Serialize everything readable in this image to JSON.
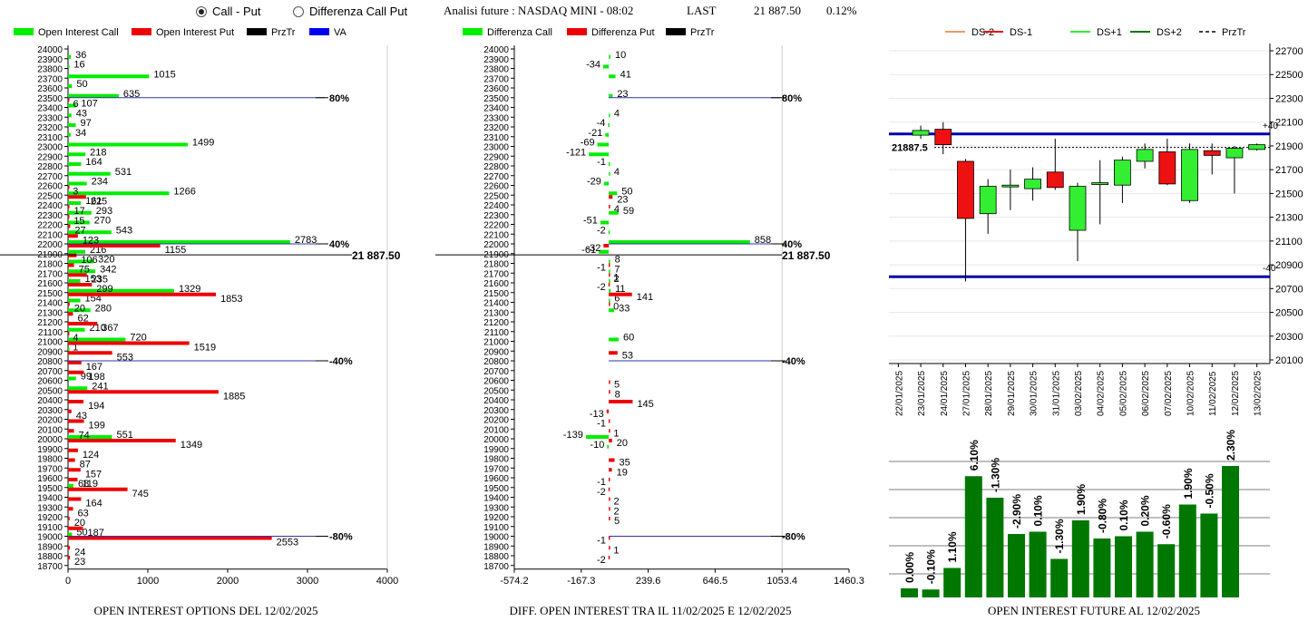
{
  "controls": {
    "radio_call_put": "Call - Put",
    "radio_diff": "Differenza Call Put",
    "selected": "call_put"
  },
  "header": {
    "title": "Analisi future : NASDAQ MINI - 08:02",
    "last_label": "LAST",
    "last_value": "21 887.50",
    "change": "0.12%"
  },
  "colors": {
    "call": "#00ee00",
    "put": "#ee0000",
    "prztr": "#000000",
    "va": "#0000ee",
    "level_line": "#3333aa",
    "up_candle": "#33ee33",
    "down_candle": "#ee1111",
    "oi_bar": "#007700"
  },
  "chart_data": [
    {
      "type": "bar",
      "orientation": "horizontal",
      "caption": "OPEN INTEREST OPTIONS DEL 12/02/2025",
      "legend": [
        "Open Interest Call",
        "Open Interest Put",
        "PrzTr",
        "VA"
      ],
      "strikes": [
        24000,
        23900,
        23800,
        23700,
        23600,
        23500,
        23400,
        23300,
        23200,
        23100,
        23000,
        22900,
        22800,
        22700,
        22600,
        22500,
        22400,
        22300,
        22200,
        22100,
        22000,
        21900,
        21800,
        21700,
        21600,
        21500,
        21400,
        21300,
        21200,
        21100,
        21000,
        20900,
        20800,
        20700,
        20600,
        20500,
        20400,
        20300,
        20200,
        20100,
        20000,
        19900,
        19800,
        19700,
        19600,
        19500,
        19400,
        19300,
        19200,
        19100,
        19000,
        18900,
        18800,
        18700
      ],
      "series": [
        {
          "name": "Open Interest Call",
          "labels": [
            {
              "strike": 23900,
              "value": 36
            },
            {
              "strike": 23800,
              "value": 16
            },
            {
              "strike": 23700,
              "value": 1015
            },
            {
              "strike": 23600,
              "value": 50
            },
            {
              "strike": 23500,
              "value": 635
            },
            {
              "strike": 23400,
              "value": 107
            },
            {
              "strike": 23300,
              "value": 43
            },
            {
              "strike": 23200,
              "value": 97
            },
            {
              "strike": 23100,
              "value": 34
            },
            {
              "strike": 23000,
              "value": 1499
            },
            {
              "strike": 22900,
              "value": 218
            },
            {
              "strike": 22800,
              "value": 164
            },
            {
              "strike": 22700,
              "value": 531
            },
            {
              "strike": 22600,
              "value": 234
            },
            {
              "strike": 22500,
              "value": 1266
            },
            {
              "strike": 22400,
              "value": 161
            },
            {
              "strike": 22300,
              "value": 293
            },
            {
              "strike": 22200,
              "value": 270
            },
            {
              "strike": 22100,
              "value": 543
            },
            {
              "strike": 22000,
              "value": 2783
            },
            {
              "strike": 21900,
              "value": 216
            },
            {
              "strike": 21800,
              "value": 320
            },
            {
              "strike": 21700,
              "value": 342
            },
            {
              "strike": 21600,
              "value": 153
            },
            {
              "strike": 21500,
              "value": 1329
            },
            {
              "strike": 21400,
              "value": 154
            },
            {
              "strike": 21300,
              "value": 280
            },
            {
              "strike": 21100,
              "value": 210
            },
            {
              "strike": 21000,
              "value": 720
            },
            {
              "strike": 20900,
              "value": 1
            },
            {
              "strike": 20600,
              "value": 99
            },
            {
              "strike": 20500,
              "value": 241
            },
            {
              "strike": 20000,
              "value": 551
            },
            {
              "strike": 19500,
              "value": 68
            },
            {
              "strike": 19000,
              "value": 50
            }
          ]
        },
        {
          "name": "Open Interest Put",
          "labels": [
            {
              "strike": 23500,
              "value": 6
            },
            {
              "strike": 22600,
              "value": 3
            },
            {
              "strike": 22500,
              "value": 225
            },
            {
              "strike": 22400,
              "value": 17
            },
            {
              "strike": 22300,
              "value": 15
            },
            {
              "strike": 22200,
              "value": 27
            },
            {
              "strike": 22100,
              "value": 123
            },
            {
              "strike": 22000,
              "value": 1155
            },
            {
              "strike": 21900,
              "value": 106
            },
            {
              "strike": 21800,
              "value": 75
            },
            {
              "strike": 21700,
              "value": 235
            },
            {
              "strike": 21600,
              "value": 299
            },
            {
              "strike": 21500,
              "value": 1853
            },
            {
              "strike": 21400,
              "value": 20
            },
            {
              "strike": 21300,
              "value": 62
            },
            {
              "strike": 21200,
              "value": 367
            },
            {
              "strike": 21100,
              "value": 4
            },
            {
              "strike": 21000,
              "value": 1519
            },
            {
              "strike": 20900,
              "value": 553
            },
            {
              "strike": 20800,
              "value": 167
            },
            {
              "strike": 20700,
              "value": 198
            },
            {
              "strike": 20500,
              "value": 1885
            },
            {
              "strike": 20400,
              "value": 194
            },
            {
              "strike": 20300,
              "value": 43
            },
            {
              "strike": 20200,
              "value": 199
            },
            {
              "strike": 20100,
              "value": 74
            },
            {
              "strike": 20000,
              "value": 1349
            },
            {
              "strike": 19900,
              "value": 124
            },
            {
              "strike": 19800,
              "value": 87
            },
            {
              "strike": 19700,
              "value": 157
            },
            {
              "strike": 19600,
              "value": 119
            },
            {
              "strike": 19500,
              "value": 745
            },
            {
              "strike": 19400,
              "value": 164
            },
            {
              "strike": 19300,
              "value": 63
            },
            {
              "strike": 19200,
              "value": 20
            },
            {
              "strike": 19100,
              "value": 187
            },
            {
              "strike": 19000,
              "value": 2553
            },
            {
              "strike": 18900,
              "value": 24
            },
            {
              "strike": 18800,
              "value": 23
            }
          ]
        }
      ],
      "levels": [
        {
          "strike": 23500,
          "label": "80%"
        },
        {
          "strike": 22000,
          "label": "40%"
        },
        {
          "strike": 20800,
          "label": "-40%"
        },
        {
          "strike": 19000,
          "label": "-80%"
        }
      ],
      "price_line": {
        "value": 21887.5,
        "label": "21 887.50"
      },
      "xticks": [
        0,
        1000,
        2000,
        3000,
        4000
      ],
      "xlim": [
        0,
        4000
      ]
    },
    {
      "type": "bar",
      "orientation": "horizontal",
      "caption": "DIFF. OPEN INTEREST TRA IL 11/02/2025 E 12/02/2025",
      "legend": [
        "Differenza Call",
        "Differenza Put",
        "PrzTr"
      ],
      "xticks": [
        "-574.2",
        "-167.3",
        "239.6",
        "646.5",
        "1053.4",
        "1460.3"
      ],
      "xlim": [
        -574.2,
        1460.3
      ],
      "series": [
        {
          "name": "Differenza Call",
          "labels": [
            {
              "strike": 23900,
              "value": 10
            },
            {
              "strike": 23800,
              "value": -34
            },
            {
              "strike": 23700,
              "value": 41
            },
            {
              "strike": 23500,
              "value": 23
            },
            {
              "strike": 23300,
              "value": 4
            },
            {
              "strike": 23200,
              "value": -4
            },
            {
              "strike": 23100,
              "value": -21
            },
            {
              "strike": 23000,
              "value": -69
            },
            {
              "strike": 22900,
              "value": -121
            },
            {
              "strike": 22800,
              "value": -1
            },
            {
              "strike": 22700,
              "value": 4
            },
            {
              "strike": 22600,
              "value": -29
            },
            {
              "strike": 22500,
              "value": 50
            },
            {
              "strike": 22300,
              "value": 59
            },
            {
              "strike": 22200,
              "value": -51
            },
            {
              "strike": 22100,
              "value": -2
            },
            {
              "strike": 22000,
              "value": 858
            },
            {
              "strike": 21900,
              "value": -61
            },
            {
              "strike": 21800,
              "value": 8
            },
            {
              "strike": 21700,
              "value": 7
            },
            {
              "strike": 21600,
              "value": 2
            },
            {
              "strike": 21500,
              "value": 11
            },
            {
              "strike": 21400,
              "value": 6
            },
            {
              "strike": 21300,
              "value": 33
            },
            {
              "strike": 21000,
              "value": 60
            },
            {
              "strike": 20000,
              "value": -139
            },
            {
              "strike": 19900,
              "value": -10
            }
          ]
        },
        {
          "name": "Differenza Put",
          "labels": [
            {
              "strike": 22500,
              "value": 23
            },
            {
              "strike": 22400,
              "value": 4
            },
            {
              "strike": 22000,
              "value": -32
            },
            {
              "strike": 21800,
              "value": -1
            },
            {
              "strike": 21700,
              "value": 1
            },
            {
              "strike": 21600,
              "value": -2
            },
            {
              "strike": 21500,
              "value": 141
            },
            {
              "strike": 21400,
              "value": 0
            },
            {
              "strike": 20900,
              "value": 53
            },
            {
              "strike": 20600,
              "value": 5
            },
            {
              "strike": 20500,
              "value": 8
            },
            {
              "strike": 20400,
              "value": 145
            },
            {
              "strike": 20300,
              "value": -13
            },
            {
              "strike": 20200,
              "value": -1
            },
            {
              "strike": 20100,
              "value": 1
            },
            {
              "strike": 20000,
              "value": 20
            },
            {
              "strike": 19800,
              "value": 35
            },
            {
              "strike": 19700,
              "value": 19
            },
            {
              "strike": 19600,
              "value": -1
            },
            {
              "strike": 19500,
              "value": -2
            },
            {
              "strike": 19400,
              "value": 2
            },
            {
              "strike": 19300,
              "value": 2
            },
            {
              "strike": 19200,
              "value": 5
            },
            {
              "strike": 19000,
              "value": -1
            },
            {
              "strike": 18900,
              "value": 1
            },
            {
              "strike": 18800,
              "value": -2
            }
          ]
        }
      ],
      "levels": [
        {
          "strike": 23500,
          "label": "80%"
        },
        {
          "strike": 22000,
          "label": "40%"
        },
        {
          "strike": 20800,
          "label": "-40%"
        },
        {
          "strike": 19000,
          "label": "-80%"
        }
      ],
      "price_line": {
        "value": 21887.5,
        "label": "21 887.50"
      }
    },
    {
      "type": "candlestick",
      "legend": [
        "DS-2",
        "DS-1",
        "DS+1",
        "DS+2",
        "PrzTr"
      ],
      "legend_colors": [
        "#ee9966",
        "#ee1111",
        "#33ee33",
        "#007700",
        "#000000"
      ],
      "dates": [
        "22/01/2025",
        "23/01/2025",
        "24/01/2025",
        "27/01/2025",
        "28/01/2025",
        "29/01/2025",
        "30/01/2025",
        "31/01/2025",
        "03/02/2025",
        "04/02/2025",
        "05/02/2025",
        "06/02/2025",
        "07/02/2025",
        "10/02/2025",
        "11/02/2025",
        "12/02/2025",
        "13/02/2025"
      ],
      "candles": [
        null,
        {
          "open": 21990,
          "close": 22030,
          "high": 22070,
          "low": 21960
        },
        {
          "open": 22040,
          "close": 21910,
          "high": 22100,
          "low": 21830
        },
        {
          "open": 21770,
          "close": 21290,
          "high": 21790,
          "low": 20760
        },
        {
          "open": 21330,
          "close": 21560,
          "high": 21620,
          "low": 21160
        },
        {
          "open": 21560,
          "close": 21570,
          "high": 21700,
          "low": 21360
        },
        {
          "open": 21540,
          "close": 21620,
          "high": 21720,
          "low": 21440
        },
        {
          "open": 21680,
          "close": 21550,
          "high": 21960,
          "low": 21530
        },
        {
          "open": 21190,
          "close": 21560,
          "high": 21590,
          "low": 20930
        },
        {
          "open": 21590,
          "close": 21590,
          "high": 21780,
          "low": 21240
        },
        {
          "open": 21570,
          "close": 21780,
          "high": 21810,
          "low": 21420
        },
        {
          "open": 21770,
          "close": 21870,
          "high": 21920,
          "low": 21710
        },
        {
          "open": 21850,
          "close": 21580,
          "high": 21960,
          "low": 21570
        },
        {
          "open": 21440,
          "close": 21870,
          "high": 21920,
          "low": 21420
        },
        {
          "open": 21860,
          "close": 21820,
          "high": 21920,
          "low": 21660
        },
        {
          "open": 21800,
          "close": 21880,
          "high": 21900,
          "low": 21500
        },
        {
          "open": 21870,
          "close": 21910,
          "high": 21920,
          "low": 21860
        }
      ],
      "yticks": [
        22700,
        22500,
        22300,
        22100,
        21900,
        21700,
        21500,
        21300,
        21100,
        20900,
        20700,
        20500,
        20300,
        20100
      ],
      "ylim": [
        20100,
        22750
      ],
      "bands": [
        {
          "value": 22000,
          "label": "+40"
        },
        {
          "value": 20800,
          "label": "-40"
        }
      ],
      "price_line": {
        "value": 21887.5,
        "label": "21887.5"
      }
    },
    {
      "type": "bar",
      "caption": "OPEN INTEREST FUTURE AL 12/02/2025",
      "labels": [
        "0.00%",
        "-0.10%",
        "1.10%",
        "6.10%",
        "-1.30%",
        "-2.90%",
        "0.10%",
        "-1.30%",
        "1.90%",
        "-0.80%",
        "0.10%",
        "0.20%",
        "-0.60%",
        "1.90%",
        "-0.50%",
        "2.30%"
      ],
      "values": [
        8,
        7,
        26,
        107,
        88,
        56,
        58,
        34,
        68,
        52,
        54,
        58,
        47,
        82,
        74,
        116
      ]
    }
  ]
}
